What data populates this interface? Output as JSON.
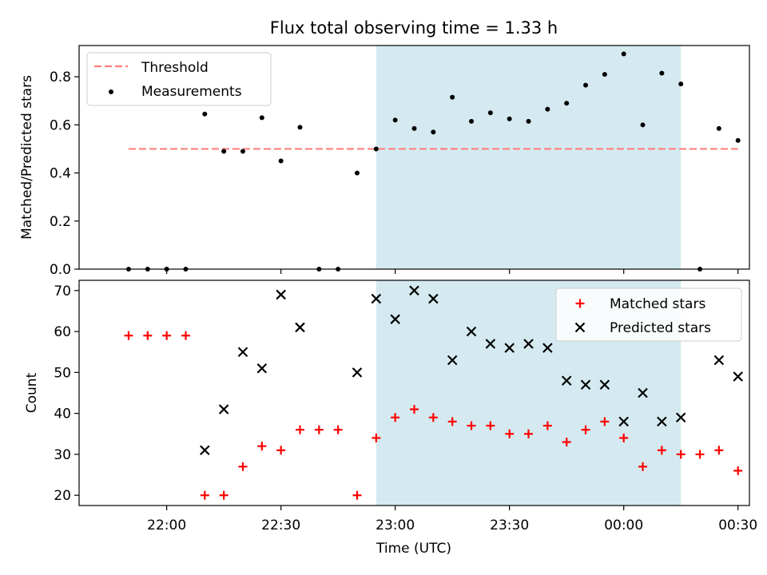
{
  "chart_data": {
    "title": "Flux total observing time = 1.33 h",
    "xlabel": "Time (UTC)",
    "x_tick_labels": [
      "22:00",
      "22:30",
      "23:00",
      "23:30",
      "00:00",
      "00:30"
    ],
    "x_tick_minutes": [
      1320,
      1350,
      1380,
      1410,
      1440,
      1470
    ],
    "x_range_minutes": [
      1297,
      1473
    ],
    "highlight_span_minutes": [
      1375,
      1455
    ],
    "colors": {
      "threshold": "#ff7f7f",
      "measurement": "#000000",
      "matched": "#ff0000",
      "predicted": "#000000",
      "highlight": "#d4eaf0"
    },
    "panels": [
      {
        "type": "scatter",
        "ylabel": "Matched/Predicted stars",
        "ylim": [
          0,
          0.93
        ],
        "y_ticks": [
          0.0,
          0.2,
          0.4,
          0.6,
          0.8
        ],
        "y_tick_labels": [
          "0.0",
          "0.2",
          "0.4",
          "0.6",
          "0.8"
        ],
        "legend_position": "upper-left",
        "threshold": {
          "name": "Threshold",
          "y": 0.5,
          "x_start": 1310,
          "x_end": 1470
        },
        "series": [
          {
            "name": "Measurements",
            "x": [
              1310,
              1315,
              1320,
              1325,
              1330,
              1335,
              1340,
              1345,
              1350,
              1355,
              1360,
              1365,
              1370,
              1375,
              1380,
              1385,
              1390,
              1395,
              1400,
              1405,
              1410,
              1415,
              1420,
              1425,
              1430,
              1435,
              1440,
              1445,
              1450,
              1455,
              1460,
              1465,
              1470
            ],
            "y": [
              0,
              0,
              0,
              0,
              0.645,
              0.49,
              0.49,
              0.63,
              0.45,
              0.59,
              0,
              0,
              0.4,
              0.5,
              0.62,
              0.585,
              0.57,
              0.715,
              0.615,
              0.65,
              0.625,
              0.615,
              0.665,
              0.69,
              0.765,
              0.81,
              0.895,
              0.6,
              0.815,
              0.77,
              0,
              0.585,
              0.535
            ]
          }
        ]
      },
      {
        "type": "scatter",
        "ylabel": "Count",
        "ylim": [
          17.5,
          72.5
        ],
        "y_ticks": [
          20,
          30,
          40,
          50,
          60,
          70
        ],
        "y_tick_labels": [
          "20",
          "30",
          "40",
          "50",
          "60",
          "70"
        ],
        "legend_position": "upper-right",
        "series": [
          {
            "name": "Matched stars",
            "marker": "plus",
            "x": [
              1310,
              1315,
              1320,
              1325,
              1330,
              1335,
              1340,
              1345,
              1350,
              1355,
              1360,
              1365,
              1370,
              1375,
              1380,
              1385,
              1390,
              1395,
              1400,
              1405,
              1410,
              1415,
              1420,
              1425,
              1430,
              1435,
              1440,
              1445,
              1450,
              1455,
              1460,
              1465,
              1470
            ],
            "y": [
              59,
              59,
              59,
              59,
              20,
              20,
              27,
              32,
              31,
              36,
              36,
              36,
              20,
              34,
              39,
              41,
              39,
              38,
              37,
              37,
              35,
              35,
              37,
              33,
              36,
              38,
              34,
              27,
              31,
              30,
              30,
              31,
              26
            ]
          },
          {
            "name": "Predicted stars",
            "marker": "x",
            "x": [
              1330,
              1335,
              1340,
              1345,
              1350,
              1355,
              1370,
              1375,
              1380,
              1385,
              1390,
              1395,
              1400,
              1405,
              1410,
              1415,
              1420,
              1425,
              1430,
              1435,
              1440,
              1445,
              1450,
              1455,
              1465,
              1470
            ],
            "y": [
              31,
              41,
              55,
              51,
              69,
              61,
              50,
              68,
              63,
              70,
              68,
              53,
              60,
              57,
              56,
              57,
              56,
              48,
              47,
              47,
              38,
              45,
              38,
              39,
              53,
              49
            ]
          }
        ]
      }
    ]
  }
}
